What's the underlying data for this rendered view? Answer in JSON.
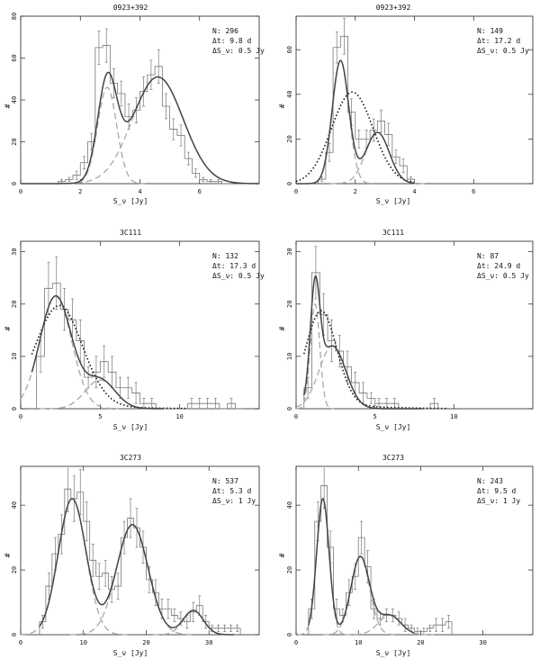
{
  "chart_data": [
    {
      "type": "histogram-fit",
      "title": "0923+392",
      "xlabel": "S_ν [Jy]",
      "ylabel": "#",
      "xlim": [
        0,
        8
      ],
      "ylim": [
        0,
        80
      ],
      "xticks": [
        0,
        2,
        4,
        6
      ],
      "yticks": [
        0,
        20,
        40,
        60,
        80
      ],
      "annotations": [
        "N: 296",
        "Δt: 9.8 d",
        "ΔS_ν: 0.5 Jy"
      ],
      "bin_width": 0.25,
      "histogram": {
        "bin_starts": [
          1.25,
          1.5,
          1.75,
          2.0,
          2.25,
          2.5,
          2.75,
          3.0,
          3.25,
          3.5,
          3.75,
          4.0,
          4.25,
          4.5,
          4.75,
          5.0,
          5.25,
          5.5,
          5.75,
          6.0,
          6.25,
          6.5,
          6.75
        ],
        "counts": [
          1,
          2,
          4,
          10,
          20,
          65,
          66,
          48,
          43,
          32,
          35,
          44,
          52,
          56,
          37,
          26,
          23,
          12,
          5,
          2,
          1,
          1,
          0
        ],
        "errors": [
          1,
          1,
          2,
          3,
          4,
          8,
          8,
          7,
          6,
          6,
          6,
          7,
          7,
          8,
          6,
          5,
          5,
          3,
          2,
          1,
          1,
          1,
          0
        ]
      },
      "components": [
        {
          "amp": 46,
          "mu": 2.9,
          "sigma": 0.32
        },
        {
          "amp": 51,
          "mu": 4.6,
          "sigma": 0.85
        }
      ],
      "unimodal_fit": null,
      "fit_x_range": [
        0,
        8
      ]
    },
    {
      "type": "histogram-fit",
      "title": "0923+392",
      "xlabel": "S_ν [Jy]",
      "ylabel": "#",
      "xlim": [
        0,
        8
      ],
      "ylim": [
        0,
        75
      ],
      "xticks": [
        0,
        2,
        4,
        6
      ],
      "yticks": [
        0,
        20,
        40,
        60
      ],
      "annotations": [
        "N: 149",
        "Δt: 17.2 d",
        "ΔS_ν: 0.5 Jy"
      ],
      "bin_width": 0.25,
      "histogram": {
        "bin_starts": [
          0.75,
          1.0,
          1.25,
          1.5,
          1.75,
          2.0,
          2.25,
          2.5,
          2.75,
          3.0,
          3.25,
          3.5,
          3.75
        ],
        "counts": [
          2,
          14,
          61,
          66,
          32,
          20,
          20,
          24,
          28,
          22,
          12,
          8,
          2
        ],
        "errors": [
          1,
          4,
          7,
          8,
          6,
          4,
          4,
          5,
          5,
          5,
          3,
          3,
          1
        ]
      },
      "components": [
        {
          "amp": 55,
          "mu": 1.5,
          "sigma": 0.28
        },
        {
          "amp": 23,
          "mu": 2.75,
          "sigma": 0.4
        }
      ],
      "unimodal_fit": {
        "amp": 41,
        "mu": 1.9,
        "sigma": 0.7
      },
      "fit_x_range": [
        0,
        4
      ]
    },
    {
      "type": "histogram-fit",
      "title": "3C111",
      "xlabel": "S_ν [Jy]",
      "ylabel": "#",
      "xlim": [
        0,
        15
      ],
      "ylim": [
        0,
        32
      ],
      "xticks": [
        0,
        5,
        10
      ],
      "yticks": [
        0,
        10,
        20,
        30
      ],
      "annotations": [
        "N: 132",
        "Δt: 17.3 d",
        "ΔS_ν: 0.5 Jy"
      ],
      "bin_width": 0.5,
      "histogram": {
        "bin_starts": [
          1.0,
          1.5,
          2.0,
          2.5,
          3.0,
          3.5,
          4.0,
          4.5,
          5.0,
          5.5,
          6.0,
          6.5,
          7.0,
          7.5,
          8.0,
          8.5,
          9.0,
          9.5,
          10.0,
          10.5,
          11.0,
          11.5,
          12.0,
          12.5,
          13.0,
          13.5
        ],
        "counts": [
          10,
          23,
          24,
          19,
          17,
          13,
          6,
          7,
          9,
          7,
          4,
          4,
          3,
          1,
          1,
          0,
          0,
          0,
          0,
          1,
          1,
          1,
          1,
          0,
          1,
          0
        ],
        "errors": [
          3,
          5,
          5,
          4,
          4,
          4,
          2,
          3,
          3,
          3,
          2,
          2,
          2,
          1,
          1,
          0,
          0,
          0,
          0,
          1,
          1,
          1,
          1,
          0,
          1,
          0
        ]
      },
      "components": [
        {
          "amp": 21.5,
          "mu": 2.2,
          "sigma": 1.0
        },
        {
          "amp": 5.5,
          "mu": 5.0,
          "sigma": 0.95
        }
      ],
      "unimodal_fit": {
        "amp": 19,
        "mu": 2.35,
        "sigma": 1.5,
        "tail": 0.0014
      },
      "fit_x_range": [
        0.7,
        9.0
      ],
      "unimodal_x_range": [
        0.7,
        10.5
      ]
    },
    {
      "type": "histogram-fit",
      "title": "3C111",
      "xlabel": "S_ν [Jy]",
      "ylabel": "#",
      "xlim": [
        0,
        15
      ],
      "ylim": [
        0,
        32
      ],
      "xticks": [
        0,
        5,
        10
      ],
      "yticks": [
        0,
        10,
        20,
        30
      ],
      "annotations": [
        "N: 87",
        "Δt: 24.9 d",
        "ΔS_ν: 0.5 Jy"
      ],
      "bin_width": 0.5,
      "histogram": {
        "bin_starts": [
          0.5,
          1.0,
          1.5,
          2.0,
          2.5,
          3.0,
          3.5,
          4.0,
          4.5,
          5.0,
          5.5,
          6.0,
          6.5,
          7.0,
          7.5,
          8.0,
          8.5,
          9.0
        ],
        "counts": [
          4,
          26,
          18,
          13,
          11,
          8,
          5,
          3,
          2,
          1,
          1,
          1,
          0,
          0,
          0,
          0,
          1,
          0
        ],
        "errors": [
          2,
          5,
          4,
          4,
          3,
          3,
          2,
          2,
          1,
          1,
          1,
          1,
          0,
          0,
          0,
          0,
          1,
          0
        ]
      },
      "components": [
        {
          "amp": 20,
          "mu": 1.2,
          "sigma": 0.3
        },
        {
          "amp": 12,
          "mu": 2.3,
          "sigma": 0.85
        }
      ],
      "unimodal_fit": {
        "amp": 18,
        "mu": 1.55,
        "sigma": 1.0,
        "tail": 0.0014
      },
      "fit_x_range": [
        0.5,
        8.0
      ],
      "unimodal_x_range": [
        0.5,
        9.5
      ]
    },
    {
      "type": "histogram-fit",
      "title": "3C273",
      "xlabel": "S_ν [Jy]",
      "ylabel": "#",
      "xlim": [
        0,
        38
      ],
      "ylim": [
        0,
        52
      ],
      "xticks": [
        0,
        10,
        20,
        30
      ],
      "yticks": [
        0,
        20,
        40
      ],
      "annotations": [
        "N: 537",
        "Δt: 5.3 d",
        "ΔS_ν: 1 Jy"
      ],
      "bin_width": 1,
      "histogram": {
        "bin_starts": [
          3,
          4,
          5,
          6,
          7,
          8,
          9,
          10,
          11,
          12,
          13,
          14,
          15,
          16,
          17,
          18,
          19,
          20,
          21,
          22,
          23,
          24,
          25,
          26,
          27,
          28,
          29,
          30,
          31,
          32,
          33,
          34
        ],
        "counts": [
          4,
          15,
          25,
          31,
          45,
          42,
          44,
          35,
          23,
          18,
          19,
          14,
          15,
          30,
          36,
          33,
          27,
          17,
          13,
          8,
          8,
          6,
          5,
          4,
          7,
          9,
          4,
          2,
          2,
          2,
          2,
          2
        ],
        "errors": [
          2,
          4,
          5,
          6,
          7,
          7,
          7,
          6,
          5,
          4,
          4,
          4,
          4,
          5,
          6,
          6,
          5,
          4,
          4,
          3,
          3,
          2,
          2,
          2,
          3,
          3,
          2,
          1,
          1,
          1,
          1,
          1
        ]
      },
      "components": [
        {
          "amp": 42,
          "mu": 8.2,
          "sigma": 2.2
        },
        {
          "amp": 34,
          "mu": 17.8,
          "sigma": 2.5
        },
        {
          "amp": 7.5,
          "mu": 27.5,
          "sigma": 1.6
        }
      ],
      "unimodal_fit": null,
      "fit_x_range": [
        3,
        34
      ]
    },
    {
      "type": "histogram-fit",
      "title": "3C273",
      "xlabel": "S_ν [Jy]",
      "ylabel": "#",
      "xlim": [
        0,
        38
      ],
      "ylim": [
        0,
        52
      ],
      "xticks": [
        0,
        10,
        20,
        30
      ],
      "yticks": [
        0,
        20,
        40
      ],
      "annotations": [
        "N: 243",
        "Δt: 9.5 d",
        "ΔS_ν: 1 Jy"
      ],
      "bin_width": 1,
      "histogram": {
        "bin_starts": [
          2,
          3,
          4,
          5,
          6,
          7,
          8,
          9,
          10,
          11,
          12,
          13,
          14,
          15,
          16,
          17,
          18,
          19,
          20,
          21,
          22,
          23,
          24
        ],
        "counts": [
          8,
          35,
          46,
          27,
          8,
          6,
          13,
          18,
          30,
          21,
          8,
          5,
          6,
          6,
          5,
          3,
          2,
          1,
          1,
          2,
          3,
          3,
          4
        ],
        "errors": [
          3,
          6,
          7,
          5,
          3,
          2,
          4,
          4,
          5,
          5,
          3,
          2,
          2,
          2,
          2,
          2,
          1,
          1,
          1,
          1,
          2,
          2,
          2
        ]
      },
      "components": [
        {
          "amp": 42,
          "mu": 4.3,
          "sigma": 1.0
        },
        {
          "amp": 24,
          "mu": 10.3,
          "sigma": 1.5
        },
        {
          "amp": 6,
          "mu": 15.0,
          "sigma": 1.8
        }
      ],
      "unimodal_fit": null,
      "fit_x_range": [
        2,
        19
      ]
    }
  ]
}
